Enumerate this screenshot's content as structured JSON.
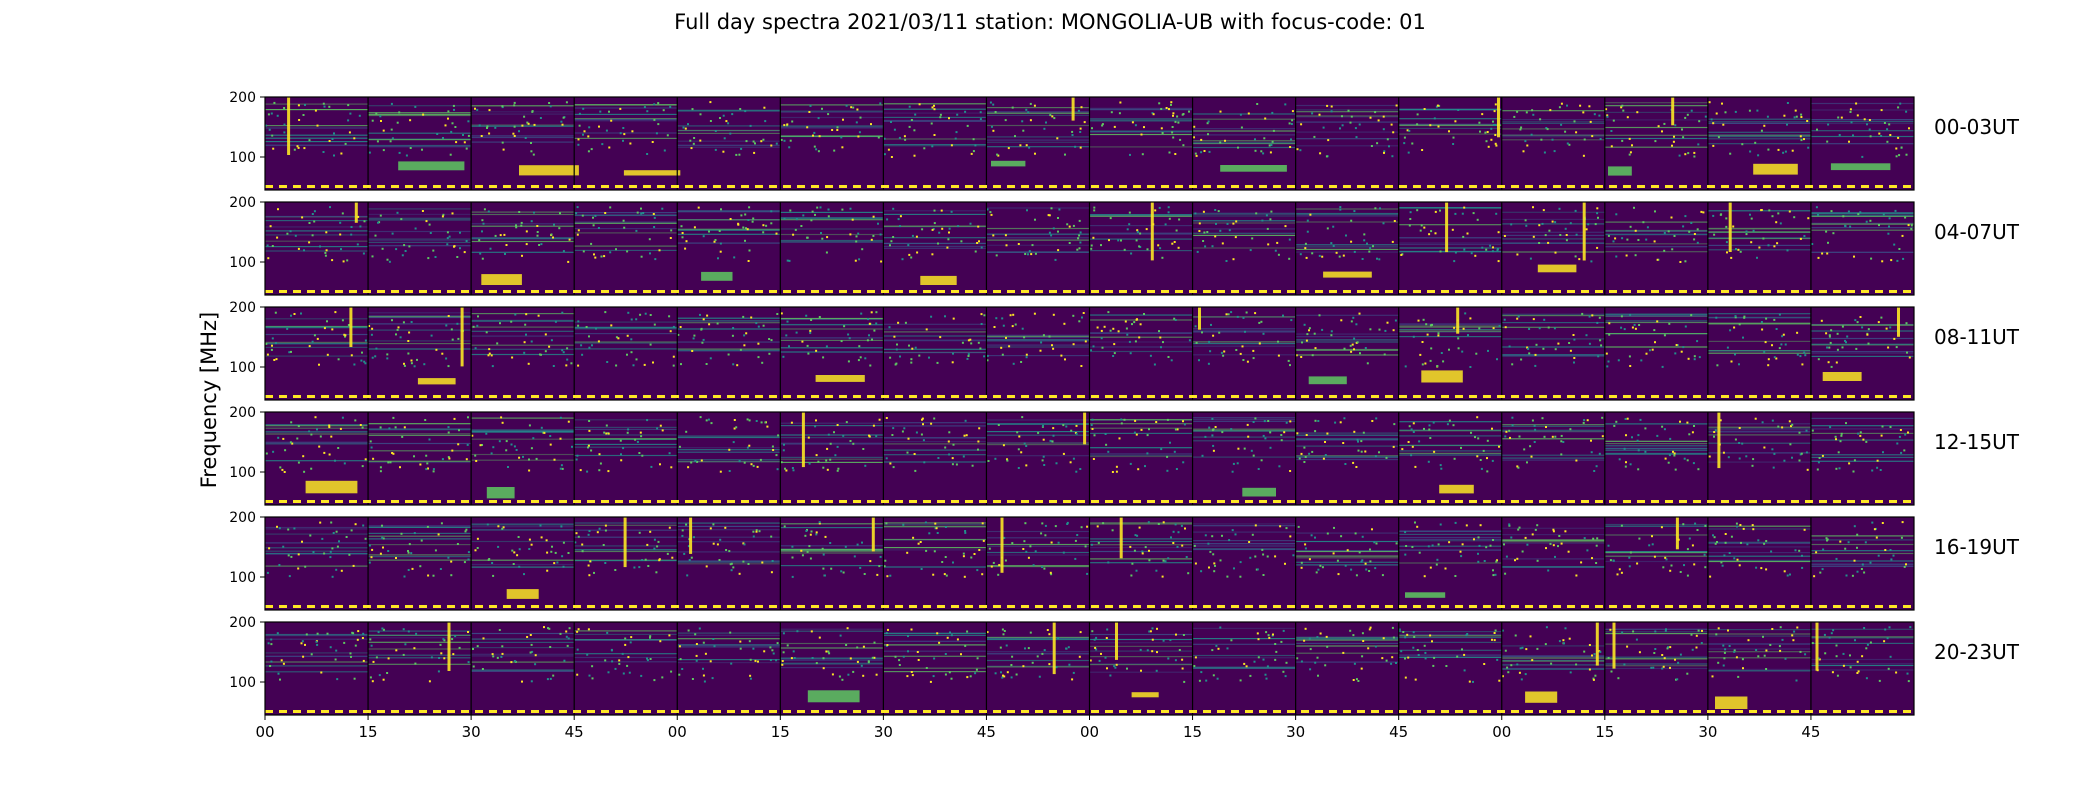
{
  "title": "Full day spectra 2021/03/11 station: MONGOLIA-UB with focus-code: 01",
  "chart_data": {
    "type": "heatmap",
    "title": "Full day spectra 2021/03/11 station: MONGOLIA-UB with focus-code: 01",
    "ylabel": "Frequency [MHz]",
    "xlabel": "",
    "colormap": "viridis",
    "colormap_stops": [
      "#440154",
      "#3b528b",
      "#21918c",
      "#5ec962",
      "#fde725"
    ],
    "ylim": [
      45,
      200
    ],
    "y_ticks": [
      "100",
      "200"
    ],
    "x_ticks": [
      "00",
      "15",
      "30",
      "45",
      "00",
      "15",
      "30",
      "45",
      "00",
      "15",
      "30",
      "45",
      "00",
      "15",
      "30",
      "45"
    ],
    "panels_per_row": 16,
    "panel_minutes": 15,
    "rows": [
      {
        "label": "00-03UT"
      },
      {
        "label": "04-07UT"
      },
      {
        "label": "08-11UT"
      },
      {
        "label": "12-15UT"
      },
      {
        "label": "16-19UT"
      },
      {
        "label": "20-23UT"
      }
    ],
    "grid": false
  }
}
